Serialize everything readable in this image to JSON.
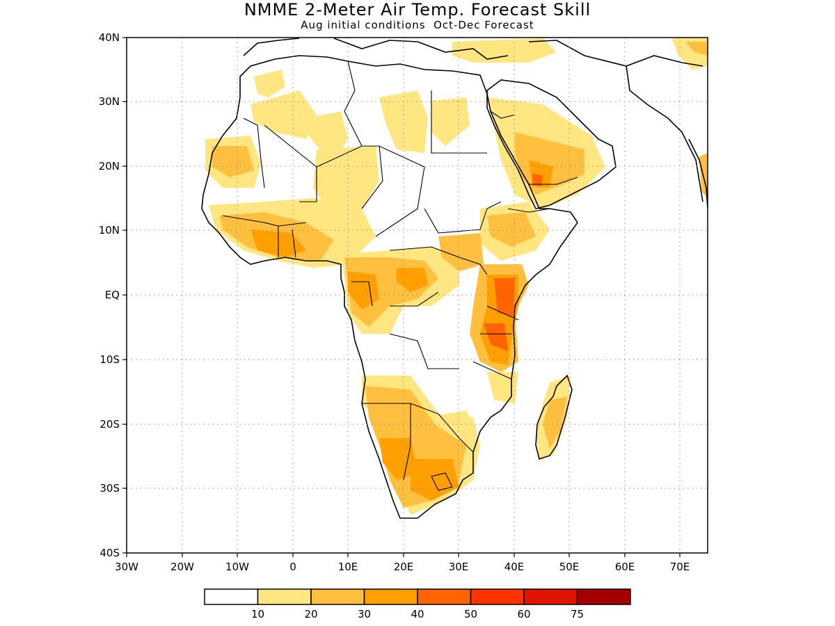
{
  "title": "NMME 2-Meter Air Temp. Forecast Skill",
  "subtitle": "Aug initial conditions  Oct-Dec Forecast",
  "map": {
    "projection": "equirectangular",
    "lon_range": [
      -30,
      75
    ],
    "lat_range": [
      -40,
      40
    ],
    "lat_labels": [
      "40N",
      "30N",
      "20N",
      "10N",
      "EQ",
      "10S",
      "20S",
      "30S",
      "40S"
    ],
    "lon_labels": [
      "30W",
      "20W",
      "10W",
      "0",
      "10E",
      "20E",
      "30E",
      "40E",
      "50E",
      "60E",
      "70E"
    ],
    "gridlines": "dotted",
    "region": "Africa"
  },
  "colorbar": {
    "colors": [
      "#ffffff",
      "#ffe680",
      "#ffc040",
      "#ffa000",
      "#ff6400",
      "#ff3200",
      "#e11400",
      "#a50000"
    ],
    "labels": [
      "10",
      "20",
      "30",
      "40",
      "50",
      "60",
      "75"
    ]
  }
}
